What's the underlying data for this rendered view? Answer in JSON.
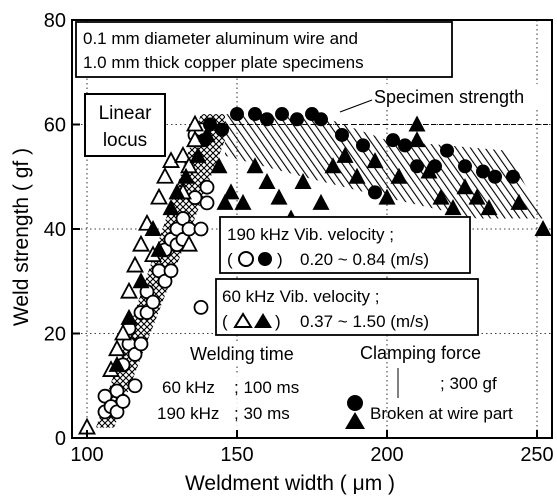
{
  "chart_data": {
    "type": "scatter",
    "xlabel": "Weldment width  ( μm )",
    "ylabel": "Weld strength  ( gf )",
    "xlim": [
      95,
      255
    ],
    "ylim": [
      0,
      80
    ],
    "xticks": [
      "100",
      "150",
      "200",
      "250"
    ],
    "yticks": [
      "0",
      "20",
      "40",
      "60",
      "80"
    ],
    "grid": "dotted",
    "specimen_strength": 60,
    "title_box": [
      "0.1 mm diameter aluminum wire and",
      "1.0 mm thick copper plate specimens"
    ],
    "linear_locus_label": [
      "Linear",
      "locus"
    ],
    "specimen_strength_label": "Specimen strength",
    "legend_190": {
      "line1": "190 kHz  Vib. velocity ;",
      "sym_open": "○",
      "sym_filled": "●",
      "range": "0.20 ~ 0.84 (m/s)"
    },
    "legend_60": {
      "line1": "60 kHz   Vib. velocity ;",
      "sym_open": "△",
      "sym_filled": "▲",
      "range": "0.37 ~ 1.50 (m/s)"
    },
    "welding_time": {
      "title": "Welding time",
      "row1_freq": "60 kHz",
      "row1_time": ";  100 ms",
      "row2_freq": "190 kHz",
      "row2_time": ";   30 ms"
    },
    "clamping_force": {
      "title": "Clamping force",
      "value": "; 300 gf"
    },
    "broken_at_wire_part": "Broken at wire part",
    "series": [
      {
        "marker": "open-circle",
        "points": [
          [
            106,
            5
          ],
          [
            106,
            8
          ],
          [
            108,
            6
          ],
          [
            110,
            5
          ],
          [
            110,
            9
          ],
          [
            112,
            7
          ],
          [
            112,
            14
          ],
          [
            114,
            18
          ],
          [
            114,
            21
          ],
          [
            116,
            16
          ],
          [
            118,
            18
          ],
          [
            118,
            24
          ],
          [
            120,
            24
          ],
          [
            120,
            28
          ],
          [
            122,
            26
          ],
          [
            124,
            32
          ],
          [
            126,
            30
          ],
          [
            126,
            36
          ],
          [
            128,
            32
          ],
          [
            128,
            38
          ],
          [
            130,
            37
          ],
          [
            130,
            40
          ],
          [
            132,
            38
          ],
          [
            132,
            42
          ],
          [
            134,
            40
          ],
          [
            136,
            46
          ],
          [
            138,
            25
          ],
          [
            138,
            40
          ],
          [
            140,
            45
          ],
          [
            140,
            48
          ],
          [
            116,
            10
          ],
          [
            136,
            58
          ],
          [
            138,
            59
          ]
        ]
      },
      {
        "marker": "filled-circle",
        "points": [
          [
            139,
            57
          ],
          [
            141,
            60
          ],
          [
            145,
            59
          ],
          [
            150,
            62
          ],
          [
            156,
            62
          ],
          [
            160,
            61
          ],
          [
            165,
            62
          ],
          [
            170,
            61
          ],
          [
            175,
            62
          ],
          [
            178,
            61
          ],
          [
            185,
            58
          ],
          [
            192,
            56
          ],
          [
            196,
            47
          ],
          [
            202,
            57
          ],
          [
            206,
            56
          ],
          [
            210,
            52
          ],
          [
            216,
            52
          ],
          [
            220,
            55
          ],
          [
            226,
            52
          ],
          [
            232,
            51
          ],
          [
            236,
            50
          ],
          [
            242,
            50
          ]
        ]
      },
      {
        "marker": "open-triangle",
        "points": [
          [
            100,
            2
          ],
          [
            108,
            13
          ],
          [
            110,
            17
          ],
          [
            112,
            20
          ],
          [
            114,
            28
          ],
          [
            116,
            33
          ],
          [
            118,
            37
          ],
          [
            120,
            41
          ],
          [
            122,
            35
          ],
          [
            124,
            46
          ],
          [
            126,
            50
          ],
          [
            128,
            53
          ],
          [
            132,
            47
          ],
          [
            134,
            37
          ],
          [
            136,
            57
          ],
          [
            132,
            54
          ],
          [
            134,
            52
          ],
          [
            136,
            60
          ]
        ]
      },
      {
        "marker": "filled-triangle",
        "points": [
          [
            110,
            14
          ],
          [
            114,
            23
          ],
          [
            118,
            30
          ],
          [
            122,
            40
          ],
          [
            124,
            36
          ],
          [
            128,
            44
          ],
          [
            130,
            47
          ],
          [
            133,
            50
          ],
          [
            137,
            54
          ],
          [
            140,
            58
          ],
          [
            144,
            52
          ],
          [
            146,
            45
          ],
          [
            148,
            47
          ],
          [
            152,
            45
          ],
          [
            156,
            52
          ],
          [
            160,
            49
          ],
          [
            164,
            46
          ],
          [
            168,
            42
          ],
          [
            172,
            49
          ],
          [
            178,
            45
          ],
          [
            182,
            52
          ],
          [
            186,
            54
          ],
          [
            190,
            50
          ],
          [
            196,
            53
          ],
          [
            200,
            46
          ],
          [
            204,
            50
          ],
          [
            210,
            57
          ],
          [
            214,
            51
          ],
          [
            218,
            46
          ],
          [
            222,
            44
          ],
          [
            226,
            48
          ],
          [
            230,
            46
          ],
          [
            234,
            44
          ],
          [
            244,
            45
          ],
          [
            252,
            40
          ],
          [
            210,
            60
          ]
        ]
      }
    ]
  }
}
